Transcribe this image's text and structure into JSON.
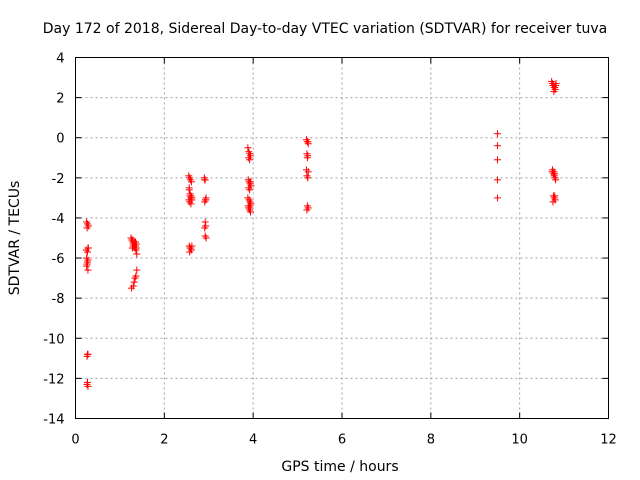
{
  "chart_data": {
    "type": "scatter",
    "title": "Day 172 of 2018, Sidereal Day-to-day VTEC variation (SDTVAR) for receiver tuva",
    "xlabel": "GPS time / hours",
    "ylabel": "SDTVAR / TECUs",
    "xlim": [
      0,
      12
    ],
    "ylim": [
      -14,
      4
    ],
    "xticks": [
      0,
      2,
      4,
      6,
      8,
      10,
      12
    ],
    "yticks": [
      -14,
      -12,
      -10,
      -8,
      -6,
      -4,
      -2,
      0,
      2,
      4
    ],
    "grid": true,
    "marker": "+",
    "color": "#ff0000",
    "series": [
      {
        "name": "SDTVAR",
        "x": [
          0.25,
          0.27,
          0.29,
          0.26,
          0.28,
          0.24,
          0.27,
          0.29,
          0.25,
          0.28,
          0.27,
          0.26,
          0.25,
          0.28,
          0.27,
          0.26,
          0.28,
          0.27,
          0.26,
          0.28,
          1.25,
          1.27,
          1.29,
          1.3,
          1.32,
          1.34,
          1.36,
          1.28,
          1.3,
          1.33,
          1.35,
          1.37,
          1.38,
          1.26,
          1.3,
          1.32,
          1.34,
          1.36,
          1.38,
          1.29,
          1.33,
          1.35,
          1.37,
          2.55,
          2.57,
          2.59,
          2.61,
          2.56,
          2.58,
          2.6,
          2.62,
          2.55,
          2.57,
          2.6,
          2.62,
          2.56,
          2.58,
          2.61,
          2.57,
          2.59,
          2.62,
          2.56,
          2.58,
          2.6,
          2.9,
          2.92,
          2.94,
          2.93,
          2.91,
          2.92,
          2.93,
          2.91,
          2.92,
          2.94,
          2.91,
          2.93,
          3.88,
          3.9,
          3.92,
          3.94,
          3.9,
          3.92,
          3.89,
          3.91,
          3.93,
          3.95,
          3.9,
          3.92,
          3.94,
          3.88,
          3.91,
          3.93,
          3.95,
          3.89,
          3.9,
          3.92,
          3.94,
          3.91,
          3.93,
          5.2,
          5.22,
          5.24,
          5.21,
          5.23,
          5.22,
          5.2,
          5.24,
          5.21,
          5.23,
          5.22,
          5.24,
          5.21,
          5.23,
          9.5,
          9.5,
          9.5,
          9.5,
          9.5,
          10.72,
          10.74,
          10.76,
          10.78,
          10.8,
          10.82,
          10.75,
          10.77,
          10.79,
          10.81,
          10.73,
          10.76,
          10.78,
          10.8,
          10.74,
          10.77,
          10.79,
          10.81,
          10.76,
          10.78,
          10.8,
          10.75,
          10.79
        ],
        "y": [
          -4.2,
          -4.3,
          -4.4,
          -4.5,
          -5.5,
          -5.6,
          -5.7,
          -5.5,
          -6.0,
          -6.1,
          -6.2,
          -6.3,
          -6.4,
          -6.6,
          -10.8,
          -10.9,
          -10.8,
          -12.2,
          -12.3,
          -12.4,
          -5.0,
          -5.1,
          -5.2,
          -5.3,
          -5.4,
          -5.5,
          -5.6,
          -5.5,
          -5.4,
          -5.3,
          -5.2,
          -5.3,
          -5.8,
          -7.5,
          -7.4,
          -7.2,
          -7.0,
          -6.9,
          -6.6,
          -5.1,
          -5.2,
          -5.4,
          -5.5,
          -1.9,
          -2.0,
          -2.1,
          -2.2,
          -2.5,
          -2.8,
          -2.9,
          -3.0,
          -3.1,
          -3.2,
          -3.3,
          -3.1,
          -5.4,
          -5.5,
          -5.6,
          -5.7,
          -5.5,
          -5.4,
          -2.6,
          -2.9,
          -3.0,
          -2.0,
          -2.1,
          -3.0,
          -3.1,
          -3.2,
          -4.2,
          -4.4,
          -4.5,
          -4.9,
          -5.0,
          -2.1,
          -3.1,
          -0.5,
          -0.7,
          -0.8,
          -0.9,
          -1.0,
          -1.1,
          -2.1,
          -2.2,
          -2.3,
          -2.4,
          -2.5,
          -2.6,
          -2.2,
          -3.0,
          -3.1,
          -3.2,
          -3.3,
          -3.4,
          -3.5,
          -3.6,
          -3.7,
          -3.5,
          -3.4,
          -0.1,
          -0.2,
          -0.3,
          -0.8,
          -0.9,
          -1.0,
          -1.6,
          -1.7,
          -1.9,
          -2.0,
          -3.4,
          -3.5,
          -3.6,
          -0.2,
          0.2,
          -0.4,
          -1.1,
          -2.1,
          -3.0,
          2.8,
          2.7,
          2.6,
          2.5,
          2.4,
          2.7,
          2.6,
          2.3,
          2.5,
          2.6,
          -1.7,
          -1.8,
          -1.9,
          -2.0,
          -1.6,
          -1.7,
          -1.8,
          -2.1,
          -2.9,
          -3.0,
          -3.1,
          -3.2,
          -2.9
        ]
      }
    ]
  }
}
